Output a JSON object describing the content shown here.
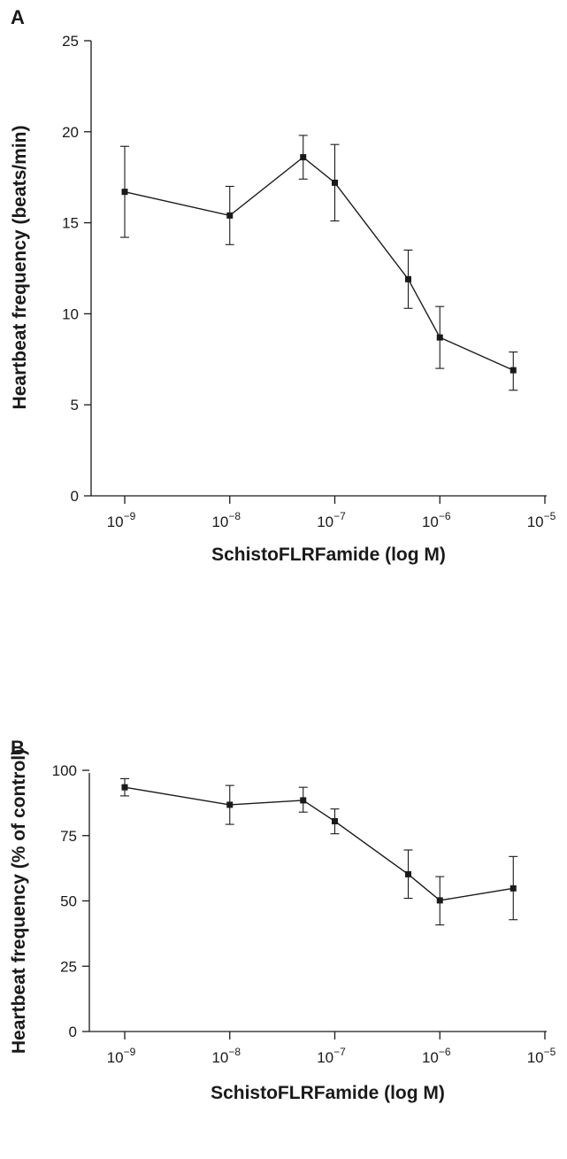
{
  "chart_data": [
    {
      "panel": "A",
      "type": "line",
      "x_scale": "log",
      "x": [
        1e-09,
        1e-08,
        5e-08,
        1e-07,
        5e-07,
        1e-06,
        5e-06
      ],
      "series": [
        {
          "values": [
            16.7,
            15.4,
            18.6,
            17.2,
            11.9,
            8.7,
            6.9
          ],
          "error_low": [
            14.2,
            13.8,
            17.4,
            15.1,
            10.3,
            7.0,
            5.8
          ],
          "error_high": [
            19.2,
            17.0,
            19.8,
            19.3,
            13.5,
            10.4,
            7.9
          ]
        }
      ],
      "xlabel": "SchistoFLRFamide (log M)",
      "ylabel": "Heartbeat frequency (beats/min)",
      "xlim": [
        1e-09,
        1e-05
      ],
      "ylim": [
        0,
        25
      ],
      "x_ticks": [
        {
          "base": "10",
          "exp": "−9"
        },
        {
          "base": "10",
          "exp": "−8"
        },
        {
          "base": "10",
          "exp": "−7"
        },
        {
          "base": "10",
          "exp": "−6"
        },
        {
          "base": "10",
          "exp": "−5"
        }
      ],
      "y_ticks": [
        "0",
        "5",
        "10",
        "15",
        "20",
        "25"
      ],
      "grid": false
    },
    {
      "panel": "B",
      "type": "line",
      "x_scale": "log",
      "x": [
        1e-09,
        1e-08,
        5e-08,
        1e-07,
        5e-07,
        1e-06,
        5e-06
      ],
      "series": [
        {
          "values": [
            93.5,
            86.8,
            88.5,
            80.5,
            60.2,
            50.2,
            54.8
          ],
          "error_low": [
            90.2,
            79.3,
            84.0,
            75.7,
            51.0,
            40.8,
            42.8
          ],
          "error_high": [
            96.8,
            94.2,
            93.5,
            85.2,
            69.5,
            59.3,
            67.0
          ]
        }
      ],
      "xlabel": "SchistoFLRFamide (log M)",
      "ylabel": "Heartbeat frequency (% of control)",
      "xlim": [
        1e-09,
        1e-05
      ],
      "ylim": [
        0,
        100
      ],
      "x_ticks": [
        {
          "base": "10",
          "exp": "−9"
        },
        {
          "base": "10",
          "exp": "−8"
        },
        {
          "base": "10",
          "exp": "−7"
        },
        {
          "base": "10",
          "exp": "−6"
        },
        {
          "base": "10",
          "exp": "−5"
        }
      ],
      "y_ticks": [
        "0",
        "25",
        "50",
        "75",
        "100"
      ],
      "grid": false
    }
  ]
}
